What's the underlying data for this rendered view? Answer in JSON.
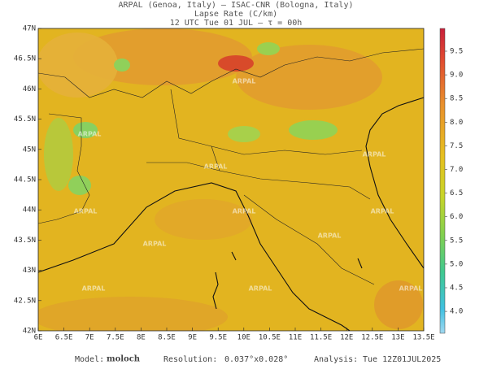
{
  "header": {
    "lines": [
      "ARPAL (Genoa, Italy)  –  ISAC-CNR (Bologna, Italy)",
      "Lapse Rate (C/km)",
      "12 UTC Tue 01 JUL  –  τ = 00h"
    ]
  },
  "map": {
    "lon_labels": [
      "6E",
      "6.5E",
      "7E",
      "7.5E",
      "8E",
      "8.5E",
      "9E",
      "9.5E",
      "10E",
      "10.5E",
      "11E",
      "11.5E",
      "12E",
      "12.5E",
      "13E",
      "13.5E"
    ],
    "lat_labels": [
      "47N",
      "46.5N",
      "46N",
      "45.5N",
      "45N",
      "44.5N",
      "44N",
      "43.5N",
      "43N",
      "42.5N",
      "42N"
    ],
    "watermark": "ARPAL"
  },
  "colorbar": {
    "labels": [
      "9.5",
      "9.0",
      "8.5",
      "8.0",
      "7.5",
      "7.0",
      "6.5",
      "6.0",
      "5.5",
      "5.0",
      "4.5",
      "4.0"
    ]
  },
  "footer": {
    "model_label": "Model:",
    "model": "moloch",
    "resolution_label": "Resolution:",
    "resolution": "0.037°x0.028°",
    "analysis_label": "Analysis:",
    "analysis": "Tue 12Z01JUL2025"
  }
}
